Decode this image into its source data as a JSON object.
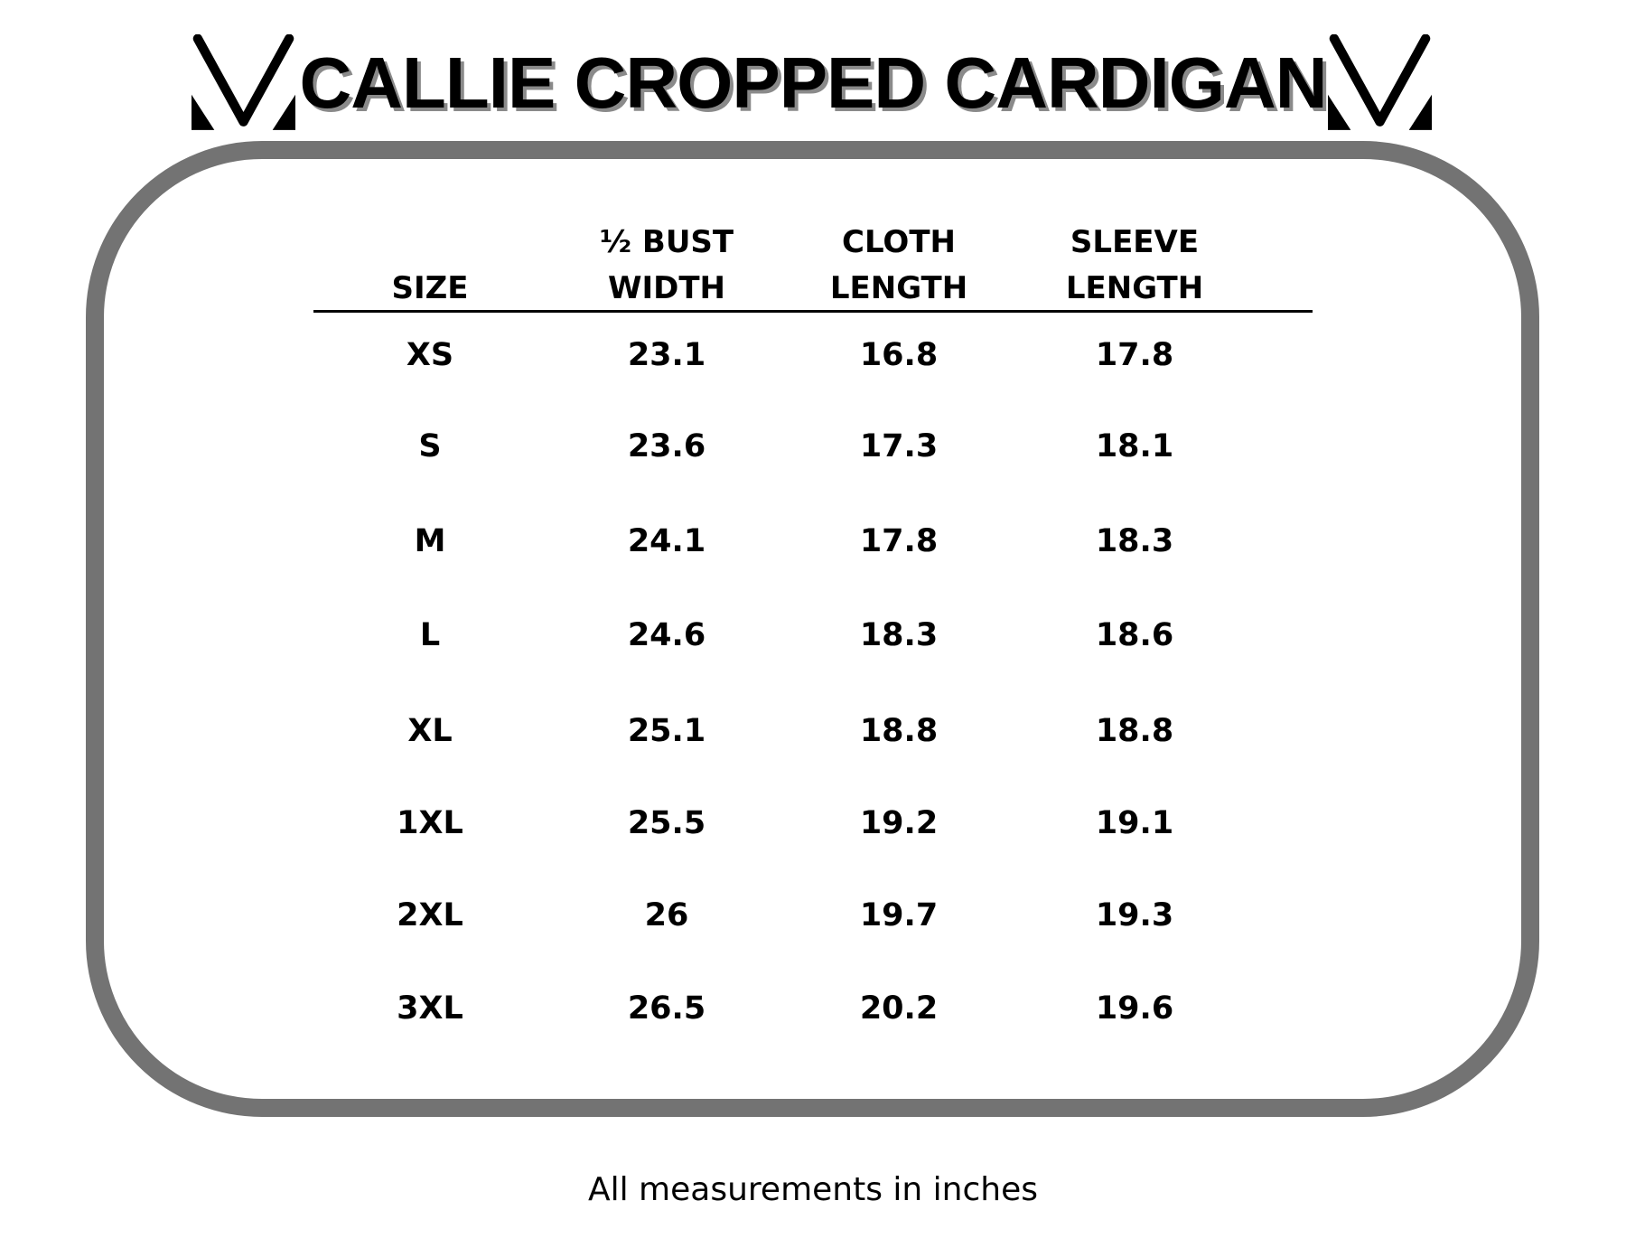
{
  "title": "CALLIE CROPPED CARDIGAN",
  "logo": {
    "icon": "v-brand-logo",
    "color": "#000000"
  },
  "frame_color": "#737373",
  "table": {
    "headers": [
      {
        "line1": "",
        "line2": "SIZE"
      },
      {
        "line1": "½ BUST",
        "line2": "WIDTH"
      },
      {
        "line1": "CLOTH",
        "line2": "LENGTH"
      },
      {
        "line1": "SLEEVE",
        "line2": "LENGTH"
      }
    ],
    "rows": [
      [
        "XS",
        "23.1",
        "16.8",
        "17.8"
      ],
      [
        "S",
        "23.6",
        "17.3",
        "18.1"
      ],
      [
        "M",
        "24.1",
        "17.8",
        "18.3"
      ],
      [
        "L",
        "24.6",
        "18.3",
        "18.6"
      ],
      [
        "XL",
        "25.1",
        "18.8",
        "18.8"
      ],
      [
        "1XL",
        "25.5",
        "19.2",
        "19.1"
      ],
      [
        "2XL",
        "26",
        "19.7",
        "19.3"
      ],
      [
        "3XL",
        "26.5",
        "20.2",
        "19.6"
      ]
    ]
  },
  "footer": "All measurements in inches"
}
